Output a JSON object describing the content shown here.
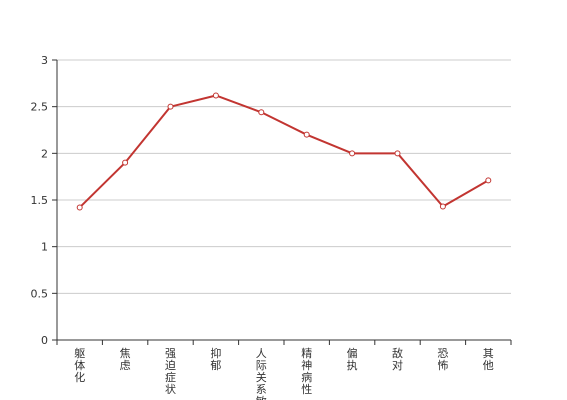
{
  "chart_data": {
    "type": "line",
    "title": "",
    "xlabel": "",
    "ylabel": "",
    "categories": [
      "躯体化",
      "焦虑",
      "强迫症状",
      "抑郁",
      "人际关系敏感",
      "精神病性",
      "偏执",
      "敌对",
      "恐怖",
      "其他"
    ],
    "series": [
      {
        "values": [
          1.42,
          1.9,
          2.5,
          2.62,
          2.44,
          2.2,
          2.0,
          2.0,
          1.43,
          1.71
        ]
      }
    ],
    "ylim": [
      0,
      3
    ],
    "yticks": [
      "0",
      "0.5",
      "1",
      "1.5",
      "2",
      "2.5",
      "3"
    ],
    "grid": true,
    "legend": "none",
    "colors": {
      "line": "#c23531",
      "grid": "#cccccc",
      "axis": "#333333",
      "marker_fill": "#ffffff"
    }
  }
}
